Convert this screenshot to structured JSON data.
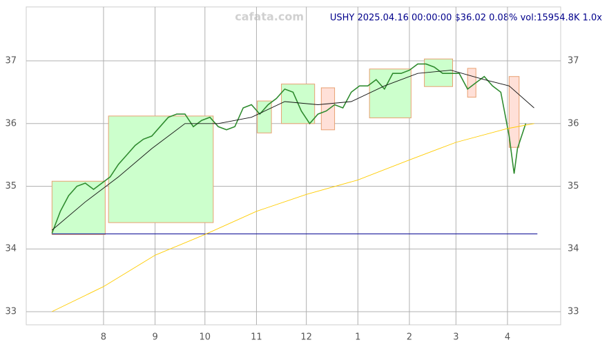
{
  "chart_data": {
    "type": "line",
    "title": "USHY 2025.04.16 00:00:00 $36.02 0.08% vol:15954.8K 1.0x",
    "watermark": "cafata.com",
    "xlim": [
      -15.5,
      306
    ],
    "ylim": [
      32.79,
      37.86
    ],
    "xticks": [
      {
        "value": 31,
        "label": "8"
      },
      {
        "value": 62,
        "label": "9"
      },
      {
        "value": 92,
        "label": "10"
      },
      {
        "value": 123,
        "label": "11"
      },
      {
        "value": 153,
        "label": "12"
      },
      {
        "value": 184,
        "label": "1"
      },
      {
        "value": 215,
        "label": "2"
      },
      {
        "value": 243,
        "label": "3"
      },
      {
        "value": 274,
        "label": "4"
      }
    ],
    "yticks": [
      33,
      34,
      35,
      36,
      37
    ],
    "grid": true,
    "zones": [
      {
        "x": [
          0,
          32
        ],
        "y": [
          34.23,
          35.08
        ],
        "color": "#ccffcc"
      },
      {
        "x": [
          34,
          97
        ],
        "y": [
          34.42,
          36.12
        ],
        "color": "#ccffcc"
      },
      {
        "x": [
          123.5,
          132
        ],
        "y": [
          35.85,
          36.36
        ],
        "color": "#ccffcc"
      },
      {
        "x": [
          138,
          158
        ],
        "y": [
          36.0,
          36.63
        ],
        "color": "#ccffcc"
      },
      {
        "x": [
          191,
          216
        ],
        "y": [
          36.09,
          36.87
        ],
        "color": "#ccffcc"
      },
      {
        "x": [
          224,
          241
        ],
        "y": [
          36.59,
          37.03
        ],
        "color": "#ccffcc"
      },
      {
        "x": [
          162,
          170
        ],
        "y": [
          35.9,
          36.57
        ],
        "color": "#ffe0d8"
      },
      {
        "x": [
          250,
          255
        ],
        "y": [
          36.42,
          36.88
        ],
        "color": "#ffe0d8"
      },
      {
        "x": [
          275,
          281
        ],
        "y": [
          35.62,
          36.75
        ],
        "color": "#ffe0d8"
      }
    ],
    "hline": {
      "value": 34.24,
      "x": [
        0,
        292
      ],
      "color": "#1a1a9c"
    },
    "series": [
      {
        "name": "close",
        "color": "#2e8b2e",
        "x": [
          0,
          5,
          10,
          15,
          20,
          25,
          30,
          35,
          40,
          45,
          50,
          55,
          60,
          65,
          70,
          75,
          80,
          85,
          90,
          95,
          100,
          105,
          110,
          115,
          120,
          125,
          130,
          135,
          140,
          145,
          150,
          155,
          160,
          165,
          170,
          175,
          180,
          185,
          190,
          195,
          200,
          205,
          210,
          215,
          220,
          225,
          230,
          235,
          245,
          250,
          255,
          260,
          265,
          270,
          275,
          278,
          280,
          285
        ],
        "values": [
          34.25,
          34.6,
          34.85,
          35.0,
          35.05,
          34.95,
          35.05,
          35.15,
          35.35,
          35.5,
          35.65,
          35.75,
          35.8,
          35.95,
          36.1,
          36.15,
          36.15,
          35.95,
          36.05,
          36.1,
          35.95,
          35.9,
          35.95,
          36.25,
          36.3,
          36.15,
          36.3,
          36.4,
          36.55,
          36.5,
          36.2,
          36.0,
          36.15,
          36.2,
          36.3,
          36.25,
          36.5,
          36.6,
          36.6,
          36.7,
          36.55,
          36.8,
          36.8,
          36.85,
          36.95,
          36.95,
          36.9,
          36.8,
          36.8,
          36.55,
          36.65,
          36.75,
          36.6,
          36.5,
          35.8,
          35.2,
          35.6,
          36.0
        ]
      },
      {
        "name": "ma-short",
        "color": "#111111",
        "x": [
          0,
          20,
          40,
          60,
          80,
          100,
          120,
          140,
          160,
          180,
          200,
          220,
          240,
          260,
          275,
          290
        ],
        "values": [
          34.3,
          34.75,
          35.15,
          35.6,
          36.0,
          36.0,
          36.1,
          36.35,
          36.3,
          36.35,
          36.6,
          36.8,
          36.85,
          36.7,
          36.6,
          36.25
        ]
      },
      {
        "name": "ma-long",
        "color": "#ffcc00",
        "x": [
          0,
          31,
          62,
          92,
          123,
          153,
          184,
          215,
          243,
          274,
          290
        ],
        "values": [
          33.0,
          33.4,
          33.9,
          34.23,
          34.6,
          34.87,
          35.1,
          35.42,
          35.7,
          35.92,
          36.0
        ]
      }
    ]
  }
}
